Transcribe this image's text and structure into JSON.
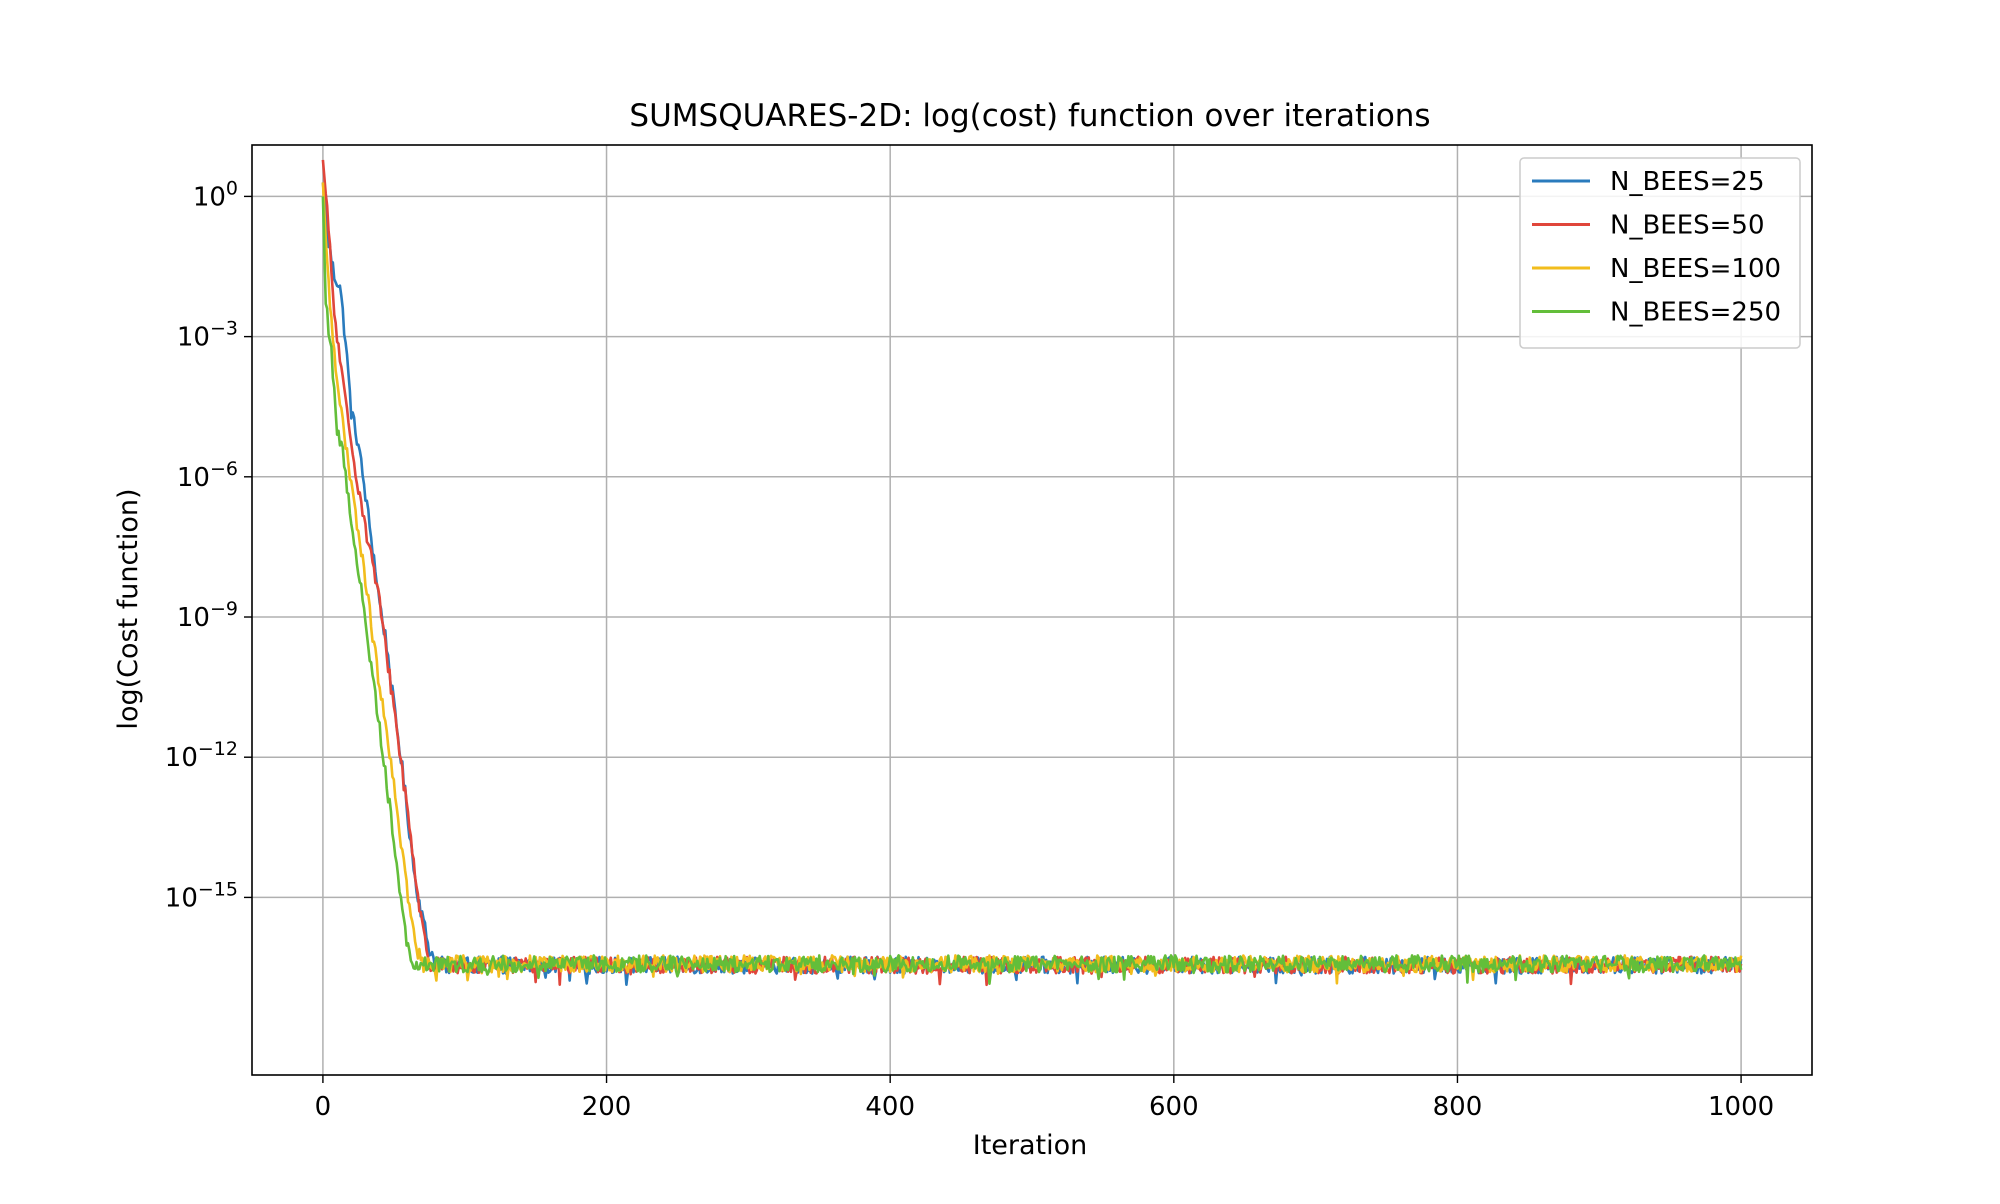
{
  "chart_data": {
    "type": "line",
    "title": "SUMSQUARES-2D: log(cost) function over iterations",
    "xlabel": "Iteration",
    "ylabel": "log(Cost function)",
    "xlim": [
      -50,
      1050
    ],
    "xticks": [
      0,
      200,
      400,
      600,
      800,
      1000
    ],
    "xtick_labels": [
      "0",
      "200",
      "400",
      "600",
      "800",
      "1000"
    ],
    "ylim_log10": [
      -18.8,
      1.1
    ],
    "yscale": "log",
    "yticks_exp": [
      0,
      -3,
      -6,
      -9,
      -12,
      -15
    ],
    "ytick_base": "10",
    "ytick_exponents": [
      "0",
      "−3",
      "−6",
      "−9",
      "−12",
      "−15"
    ],
    "grid": true,
    "legend_position": "top-right",
    "plateau_log10": -16.4,
    "plateau_noise_log10": 0.18,
    "series": [
      {
        "name": "N_BEES=25",
        "color": "#2a7bbd",
        "keypoints": [
          [
            0,
            0.3
          ],
          [
            3,
            -0.8
          ],
          [
            8,
            -1.7
          ],
          [
            12,
            -1.9
          ],
          [
            16,
            -3.1
          ],
          [
            20,
            -4.6
          ],
          [
            25,
            -5.3
          ],
          [
            30,
            -6.4
          ],
          [
            35,
            -7.5
          ],
          [
            40,
            -8.7
          ],
          [
            45,
            -9.6
          ],
          [
            50,
            -10.9
          ],
          [
            55,
            -12.0
          ],
          [
            60,
            -13.3
          ],
          [
            65,
            -14.6
          ],
          [
            70,
            -15.4
          ],
          [
            75,
            -16.1
          ],
          [
            80,
            -16.4
          ]
        ],
        "converge_at": 80,
        "tail_mean_log10": -16.45
      },
      {
        "name": "N_BEES=50",
        "color": "#e0463b",
        "keypoints": [
          [
            0,
            0.78
          ],
          [
            3,
            -0.3
          ],
          [
            8,
            -2.5
          ],
          [
            12,
            -3.5
          ],
          [
            18,
            -4.9
          ],
          [
            25,
            -6.2
          ],
          [
            32,
            -7.4
          ],
          [
            38,
            -8.3
          ],
          [
            44,
            -9.6
          ],
          [
            50,
            -10.9
          ],
          [
            56,
            -12.3
          ],
          [
            62,
            -13.7
          ],
          [
            68,
            -15.2
          ],
          [
            72,
            -16.0
          ],
          [
            76,
            -16.4
          ]
        ],
        "converge_at": 76,
        "tail_mean_log10": -16.45
      },
      {
        "name": "N_BEES=100",
        "color": "#f2bd1d",
        "keypoints": [
          [
            0,
            0.3
          ],
          [
            3,
            -1.5
          ],
          [
            7,
            -3.0
          ],
          [
            12,
            -4.4
          ],
          [
            18,
            -5.8
          ],
          [
            24,
            -7.0
          ],
          [
            30,
            -8.2
          ],
          [
            36,
            -9.6
          ],
          [
            42,
            -10.9
          ],
          [
            48,
            -12.2
          ],
          [
            54,
            -13.5
          ],
          [
            60,
            -15.0
          ],
          [
            65,
            -16.0
          ],
          [
            70,
            -16.4
          ]
        ],
        "converge_at": 70,
        "tail_mean_log10": -16.42
      },
      {
        "name": "N_BEES=250",
        "color": "#63be3a",
        "keypoints": [
          [
            0,
            0.0
          ],
          [
            2,
            -2.3
          ],
          [
            6,
            -3.3
          ],
          [
            10,
            -5.0
          ],
          [
            14,
            -5.5
          ],
          [
            20,
            -6.9
          ],
          [
            26,
            -8.2
          ],
          [
            32,
            -9.6
          ],
          [
            38,
            -10.9
          ],
          [
            44,
            -12.3
          ],
          [
            50,
            -13.8
          ],
          [
            56,
            -15.2
          ],
          [
            61,
            -16.3
          ],
          [
            64,
            -16.4
          ]
        ],
        "converge_at": 64,
        "tail_mean_log10": -16.42
      }
    ]
  }
}
